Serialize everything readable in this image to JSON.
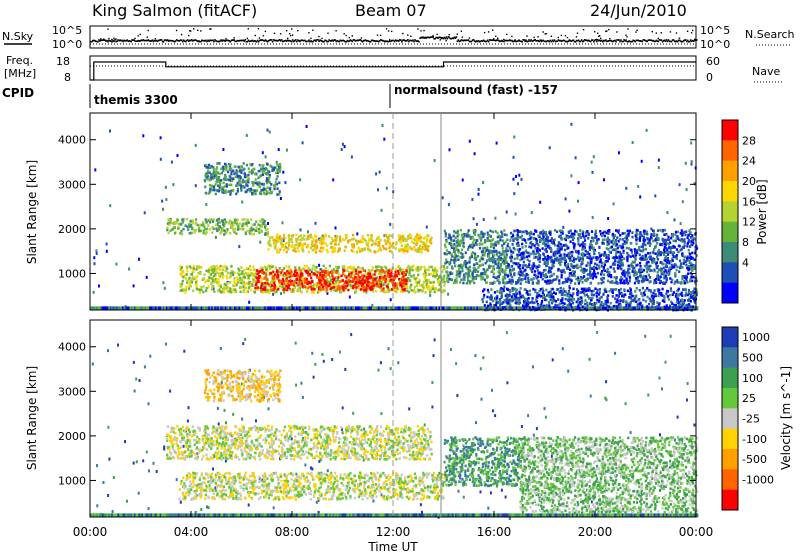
{
  "header": {
    "station": "King Salmon (fitACF)",
    "beam": "Beam 07",
    "date": "24/Jun/2010"
  },
  "summary": {
    "nsky_label": "N.Sky",
    "nsky_ticks": [
      "10^5",
      "10^0"
    ],
    "nsearch_label": "N.Search",
    "freq_label": "Freq.",
    "freq_unit": "[MHz]",
    "freq_ticks": [
      "18",
      "8"
    ],
    "nave_ticks": [
      "60",
      "0"
    ],
    "nave_label": "Nave",
    "cpid_label": "CPID",
    "cpid_entries": [
      {
        "name": "themis 3300",
        "start_hour": 0.1
      },
      {
        "name": "normalsound (fast) -157",
        "start_hour": 12.0
      }
    ],
    "freq_segments": [
      {
        "start_hour": 0.0,
        "end_hour": 0.15,
        "level": 8
      },
      {
        "start_hour": 0.15,
        "end_hour": 3.0,
        "level": 15.5
      },
      {
        "start_hour": 3.0,
        "end_hour": 14.0,
        "level": 13.5
      },
      {
        "start_hour": 14.0,
        "end_hour": 24.0,
        "level": 15.5
      }
    ]
  },
  "chart_data": [
    {
      "type": "heatmap",
      "panel": "power",
      "ylabel": "Slant Range [km]",
      "ylim": [
        180,
        4600
      ],
      "yticks": [
        1000,
        2000,
        3000,
        4000
      ],
      "colorbar_label": "Power [dB]",
      "colorbar_ticks": [
        "4",
        "8",
        "12",
        "16",
        "20",
        "24",
        "28"
      ],
      "colors": [
        "#0000ff",
        "#1e4fb4",
        "#3c8c78",
        "#64b43c",
        "#b4d232",
        "#ffd700",
        "#ffa000",
        "#ff6400",
        "#ff0000"
      ],
      "bands": [
        {
          "x": [
            4.5,
            7.5
          ],
          "y": [
            2800,
            3500
          ],
          "level": 2
        },
        {
          "x": [
            3.0,
            7.0
          ],
          "y": [
            1900,
            2250
          ],
          "level": 3
        },
        {
          "x": [
            7.0,
            13.5
          ],
          "y": [
            1500,
            1900
          ],
          "level": 5
        },
        {
          "x": [
            3.5,
            14.0
          ],
          "y": [
            600,
            1200
          ],
          "level": 4
        },
        {
          "x": [
            6.5,
            12.5
          ],
          "y": [
            650,
            1100
          ],
          "level": 8
        },
        {
          "x": [
            14.0,
            16.5
          ],
          "y": [
            800,
            2000
          ],
          "level": 2
        },
        {
          "x": [
            16.5,
            24.0
          ],
          "y": [
            800,
            2000
          ],
          "level": 1
        },
        {
          "x": [
            15.5,
            24.0
          ],
          "y": [
            200,
            700
          ],
          "level": 1
        }
      ]
    },
    {
      "type": "heatmap",
      "panel": "velocity",
      "xlabel": "Time UT",
      "ylabel": "Slant Range [km]",
      "ylim": [
        180,
        4600
      ],
      "yticks": [
        1000,
        2000,
        3000,
        4000
      ],
      "xticks": [
        "00:00",
        "04:00",
        "08:00",
        "12:00",
        "16:00",
        "20:00",
        "00:00"
      ],
      "colorbar_label": "Velocity [m s^-1]",
      "colorbar_ticks": [
        "1000",
        "500",
        "100",
        "25",
        "-25",
        "-100",
        "-500",
        "-1000"
      ],
      "colors": [
        "#1e3cb4",
        "#3c78a0",
        "#3ca050",
        "#64c83c",
        "#c8c8c8",
        "#ffd200",
        "#ffa000",
        "#ff6400",
        "#ff0000"
      ],
      "bands": [
        {
          "x": [
            4.5,
            7.5
          ],
          "y": [
            2800,
            3500
          ],
          "level": 5
        },
        {
          "x": [
            3.0,
            13.5
          ],
          "y": [
            1500,
            2250
          ],
          "level": 4
        },
        {
          "x": [
            3.5,
            14.0
          ],
          "y": [
            600,
            1200
          ],
          "level": 4
        },
        {
          "x": [
            14.0,
            17.0
          ],
          "y": [
            900,
            2000
          ],
          "level": 2
        },
        {
          "x": [
            17.0,
            24.0
          ],
          "y": [
            300,
            2000
          ],
          "level": 3
        }
      ]
    }
  ]
}
